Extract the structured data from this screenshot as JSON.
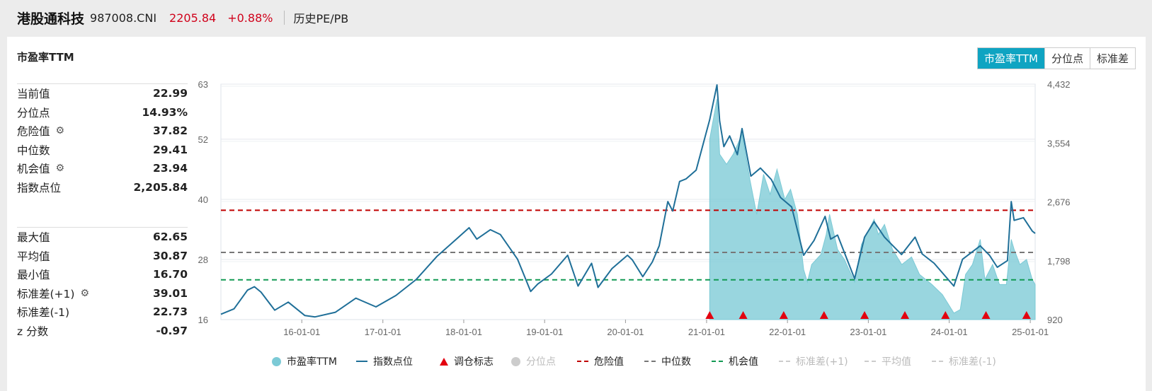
{
  "header": {
    "name": "港股通科技",
    "code": "987008.CNI",
    "price": "2205.84",
    "change": "+0.88%",
    "history_link": "历史PE/PB"
  },
  "panel": {
    "title": "市盈率TTM",
    "tabs": [
      "市盈率TTM",
      "分位点",
      "标准差"
    ],
    "accent_color": "#0fa4c2"
  },
  "stats_top": [
    {
      "label": "当前值",
      "value": "22.99",
      "gear": false
    },
    {
      "label": "分位点",
      "value": "14.93%",
      "gear": false
    },
    {
      "label": "危险值",
      "value": "37.82",
      "gear": true
    },
    {
      "label": "中位数",
      "value": "29.41",
      "gear": false
    },
    {
      "label": "机会值",
      "value": "23.94",
      "gear": true
    },
    {
      "label": "指数点位",
      "value": "2,205.84",
      "gear": false
    }
  ],
  "stats_bottom": [
    {
      "label": "最大值",
      "value": "62.65",
      "gear": false
    },
    {
      "label": "平均值",
      "value": "30.87",
      "gear": false
    },
    {
      "label": "最小值",
      "value": "16.70",
      "gear": false
    },
    {
      "label": "标准差(+1)",
      "value": "39.01",
      "gear": true
    },
    {
      "label": "标准差(-1)",
      "value": "22.73",
      "gear": true
    },
    {
      "label": "z 分数",
      "value": "-0.97",
      "gear": false
    }
  ],
  "legend": [
    {
      "label": "市盈率TTM",
      "kind": "dot",
      "color": "#7ccad6",
      "active": true
    },
    {
      "label": "指数点位",
      "kind": "line",
      "color": "#1f6f98",
      "active": true
    },
    {
      "label": "调仓标志",
      "kind": "triangle",
      "color": "#e3000f",
      "active": true
    },
    {
      "label": "分位点",
      "kind": "dot",
      "color": "#cccccc",
      "active": false
    },
    {
      "label": "危险值",
      "kind": "dash",
      "color": "#c00000",
      "active": true
    },
    {
      "label": "中位数",
      "kind": "dash",
      "color": "#777777",
      "active": true
    },
    {
      "label": "机会值",
      "kind": "dash",
      "color": "#129a54",
      "active": true
    },
    {
      "label": "标准差(+1)",
      "kind": "dash",
      "color": "#cccccc",
      "active": false
    },
    {
      "label": "平均值",
      "kind": "dash",
      "color": "#cccccc",
      "active": false
    },
    {
      "label": "标准差(-1)",
      "kind": "dash",
      "color": "#cccccc",
      "active": false
    }
  ],
  "chart_data": {
    "type": "line",
    "left_axis": {
      "label": "市盈率TTM",
      "range": [
        16,
        63
      ],
      "ticks": [
        "16",
        "28",
        "40",
        "52",
        "63"
      ]
    },
    "right_axis": {
      "label": "指数点位",
      "range": [
        920,
        4432
      ],
      "ticks": [
        "920",
        "1,798",
        "2,676",
        "3,554",
        "4,432"
      ]
    },
    "x_ticks": [
      "16-01-01",
      "17-01-01",
      "18-01-01",
      "19-01-01",
      "20-01-01",
      "21-01-01",
      "22-01-01",
      "23-01-01",
      "24-01-01",
      "25-01-01"
    ],
    "grid": true,
    "reference_lines": [
      {
        "name": "危险值",
        "value": 37.82,
        "color": "#c00000"
      },
      {
        "name": "中位数",
        "value": 29.41,
        "color": "#777777"
      },
      {
        "name": "机会值",
        "value": 23.94,
        "color": "#129a54"
      }
    ],
    "series": [
      {
        "name": "指数点位",
        "axis": "right",
        "color": "#1f6f98",
        "points": [
          [
            "2015-01-01",
            1000
          ],
          [
            "2015-03-01",
            1080
          ],
          [
            "2015-05-01",
            1360
          ],
          [
            "2015-06-01",
            1410
          ],
          [
            "2015-07-01",
            1330
          ],
          [
            "2015-09-01",
            1060
          ],
          [
            "2015-11-01",
            1180
          ],
          [
            "2016-01-15",
            980
          ],
          [
            "2016-03-01",
            960
          ],
          [
            "2016-06-01",
            1030
          ],
          [
            "2016-09-01",
            1240
          ],
          [
            "2016-12-01",
            1110
          ],
          [
            "2017-03-01",
            1280
          ],
          [
            "2017-06-01",
            1520
          ],
          [
            "2017-09-01",
            1860
          ],
          [
            "2017-11-15",
            2080
          ],
          [
            "2018-01-25",
            2290
          ],
          [
            "2018-03-01",
            2120
          ],
          [
            "2018-05-01",
            2260
          ],
          [
            "2018-06-15",
            2190
          ],
          [
            "2018-09-01",
            1820
          ],
          [
            "2018-10-30",
            1340
          ],
          [
            "2018-12-01",
            1450
          ],
          [
            "2019-02-01",
            1600
          ],
          [
            "2019-04-15",
            1880
          ],
          [
            "2019-06-01",
            1420
          ],
          [
            "2019-08-01",
            1760
          ],
          [
            "2019-08-30",
            1400
          ],
          [
            "2019-11-01",
            1680
          ],
          [
            "2020-01-10",
            1880
          ],
          [
            "2020-02-01",
            1810
          ],
          [
            "2020-03-19",
            1560
          ],
          [
            "2020-05-01",
            1780
          ],
          [
            "2020-06-01",
            2020
          ],
          [
            "2020-07-10",
            2680
          ],
          [
            "2020-08-01",
            2540
          ],
          [
            "2020-09-01",
            2980
          ],
          [
            "2020-10-01",
            3020
          ],
          [
            "2020-11-15",
            3150
          ],
          [
            "2020-12-15",
            3520
          ],
          [
            "2021-01-15",
            3900
          ],
          [
            "2021-02-17",
            4420
          ],
          [
            "2021-03-01",
            3880
          ],
          [
            "2021-03-20",
            3500
          ],
          [
            "2021-04-15",
            3660
          ],
          [
            "2021-05-20",
            3380
          ],
          [
            "2021-06-10",
            3770
          ],
          [
            "2021-07-20",
            3060
          ],
          [
            "2021-09-01",
            3180
          ],
          [
            "2021-10-20",
            3010
          ],
          [
            "2021-12-01",
            2740
          ],
          [
            "2022-01-20",
            2600
          ],
          [
            "2022-03-15",
            1880
          ],
          [
            "2022-05-01",
            2100
          ],
          [
            "2022-06-20",
            2460
          ],
          [
            "2022-07-15",
            2120
          ],
          [
            "2022-08-15",
            2180
          ],
          [
            "2022-10-31",
            1530
          ],
          [
            "2022-12-15",
            2150
          ],
          [
            "2023-01-27",
            2380
          ],
          [
            "2023-03-15",
            2150
          ],
          [
            "2023-05-31",
            1890
          ],
          [
            "2023-07-31",
            2150
          ],
          [
            "2023-09-01",
            1900
          ],
          [
            "2023-10-25",
            1760
          ],
          [
            "2024-01-22",
            1420
          ],
          [
            "2024-03-01",
            1820
          ],
          [
            "2024-05-20",
            2020
          ],
          [
            "2024-07-01",
            1880
          ],
          [
            "2024-08-05",
            1700
          ],
          [
            "2024-09-20",
            1800
          ],
          [
            "2024-10-07",
            2680
          ],
          [
            "2024-10-20",
            2400
          ],
          [
            "2024-12-01",
            2440
          ],
          [
            "2025-01-10",
            2240
          ],
          [
            "2025-01-23",
            2205.84
          ]
        ]
      },
      {
        "name": "市盈率TTM",
        "axis": "left",
        "color": "#7ccad6",
        "points": [
          [
            "2021-01-15",
            52
          ],
          [
            "2021-02-17",
            60
          ],
          [
            "2021-03-01",
            49
          ],
          [
            "2021-04-01",
            47
          ],
          [
            "2021-05-01",
            49
          ],
          [
            "2021-06-10",
            53
          ],
          [
            "2021-07-15",
            44
          ],
          [
            "2021-08-15",
            37
          ],
          [
            "2021-09-15",
            45
          ],
          [
            "2021-10-15",
            41
          ],
          [
            "2021-11-15",
            46
          ],
          [
            "2021-12-20",
            40
          ],
          [
            "2022-01-15",
            42
          ],
          [
            "2022-02-15",
            37
          ],
          [
            "2022-03-15",
            26
          ],
          [
            "2022-04-01",
            23.5
          ],
          [
            "2022-04-20",
            27
          ],
          [
            "2022-06-01",
            29
          ],
          [
            "2022-06-25",
            33
          ],
          [
            "2022-07-10",
            37
          ],
          [
            "2022-08-15",
            30
          ],
          [
            "2022-09-15",
            28
          ],
          [
            "2022-10-31",
            23.5
          ],
          [
            "2022-12-01",
            31
          ],
          [
            "2023-01-27",
            36
          ],
          [
            "2023-02-15",
            33
          ],
          [
            "2023-03-15",
            35
          ],
          [
            "2023-04-20",
            30
          ],
          [
            "2023-06-01",
            27
          ],
          [
            "2023-07-15",
            28.5
          ],
          [
            "2023-08-20",
            25
          ],
          [
            "2023-10-15",
            23
          ],
          [
            "2023-12-01",
            21
          ],
          [
            "2024-01-22",
            17.3
          ],
          [
            "2024-02-20",
            18
          ],
          [
            "2024-03-15",
            25
          ],
          [
            "2024-04-15",
            27
          ],
          [
            "2024-05-20",
            32
          ],
          [
            "2024-06-10",
            24
          ],
          [
            "2024-07-15",
            27
          ],
          [
            "2024-08-15",
            23
          ],
          [
            "2024-09-15",
            23
          ],
          [
            "2024-10-07",
            32
          ],
          [
            "2024-10-20",
            30
          ],
          [
            "2024-11-15",
            27
          ],
          [
            "2024-12-15",
            28
          ],
          [
            "2025-01-10",
            24
          ],
          [
            "2025-01-23",
            22.99
          ]
        ]
      }
    ],
    "rebalance_markers": [
      "2021-01-15",
      "2021-06-15",
      "2021-12-15",
      "2022-06-15",
      "2022-12-15",
      "2023-06-15",
      "2023-12-15",
      "2024-06-15",
      "2024-12-15"
    ]
  }
}
